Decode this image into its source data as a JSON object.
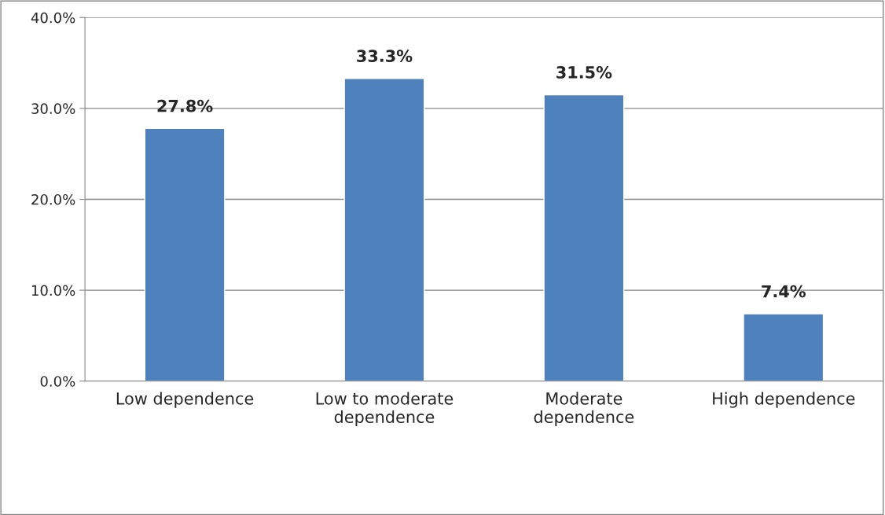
{
  "chart_data": {
    "type": "bar",
    "categories": [
      "Low dependence",
      "Low to moderate\ndependence",
      "Moderate\ndependence",
      "High dependence"
    ],
    "values": [
      27.8,
      33.3,
      31.5,
      7.4
    ],
    "value_labels": [
      "27.8%",
      "33.3%",
      "31.5%",
      "7.4%"
    ],
    "color": "#4f81bd",
    "ylim": [
      0,
      40
    ],
    "yticks": [
      {
        "value": 0,
        "label": "0.0%"
      },
      {
        "value": 10,
        "label": "10.0%"
      },
      {
        "value": 20,
        "label": "20.0%"
      },
      {
        "value": 30,
        "label": "30.0%"
      },
      {
        "value": 40,
        "label": "40.0%"
      }
    ],
    "grid": "y",
    "legend": false
  }
}
